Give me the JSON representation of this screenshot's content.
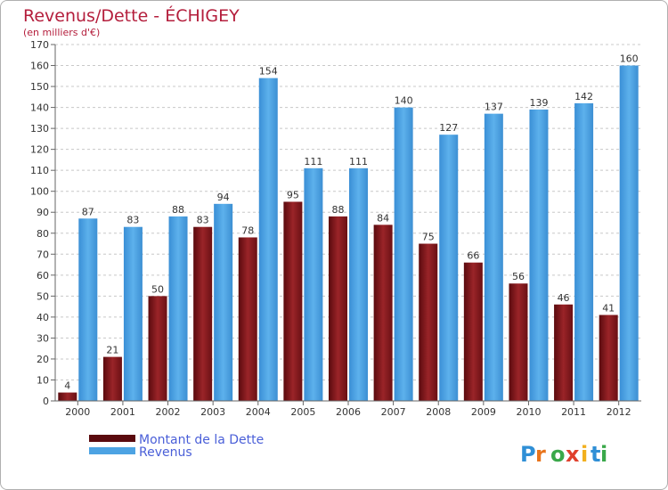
{
  "chart_data": {
    "type": "bar",
    "title": "Revenus/Dette - ÉCHIGEY",
    "subtitle": "(en milliers d'€)",
    "categories": [
      "2000",
      "2001",
      "2002",
      "2003",
      "2004",
      "2005",
      "2006",
      "2007",
      "2008",
      "2009",
      "2010",
      "2011",
      "2012"
    ],
    "series": [
      {
        "name": "Montant de la Dette",
        "color": "#8b1a1e",
        "values": [
          4,
          21,
          50,
          83,
          78,
          95,
          88,
          84,
          75,
          66,
          56,
          46,
          41
        ]
      },
      {
        "name": "Revenus",
        "color": "#4da3e3",
        "values": [
          87,
          83,
          88,
          94,
          154,
          111,
          111,
          140,
          127,
          137,
          139,
          142,
          160
        ]
      }
    ],
    "ylim": [
      0,
      170
    ],
    "yticks": [
      0,
      10,
      20,
      30,
      40,
      50,
      60,
      70,
      80,
      90,
      100,
      110,
      120,
      130,
      140,
      150,
      160,
      170
    ],
    "grid": true,
    "legend_position": "bottom-left"
  },
  "branding": {
    "logo_text": "Proxiti"
  }
}
